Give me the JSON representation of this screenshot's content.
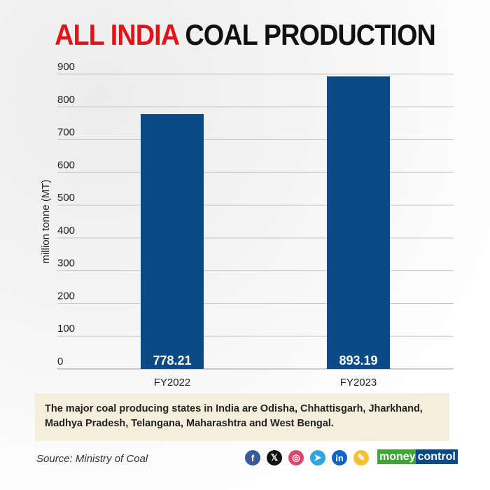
{
  "title": {
    "highlight": "ALL INDIA",
    "rest": "COAL PRODUCTION"
  },
  "chart_data": {
    "type": "bar",
    "title": "ALL INDIA COAL PRODUCTION",
    "categories": [
      "FY2022",
      "FY2023"
    ],
    "values": [
      778.21,
      893.19
    ],
    "value_labels": [
      "778.21",
      "893.19"
    ],
    "xlabel": "",
    "ylabel": "million tonne (MT)",
    "ylim": [
      0,
      900
    ],
    "yticks": [
      0,
      100,
      200,
      300,
      400,
      500,
      600,
      700,
      800,
      900
    ],
    "grid": true,
    "bar_color": "#0a4a87"
  },
  "note": "The major coal producing states in India are Odisha, Chhattisgarh, Jharkhand, Madhya Pradesh, Telangana, Maharashtra and West Bengal.",
  "source": "Source: Ministry of Coal",
  "social": [
    {
      "name": "facebook-icon",
      "glyph": "f",
      "color": "#3b5998"
    },
    {
      "name": "x-icon",
      "glyph": "𝕏",
      "color": "#111111"
    },
    {
      "name": "instagram-icon",
      "glyph": "◎",
      "color": "#d9486f"
    },
    {
      "name": "telegram-icon",
      "glyph": "➤",
      "color": "#2ca5e0"
    },
    {
      "name": "linkedin-icon",
      "glyph": "in",
      "color": "#0a66c2"
    },
    {
      "name": "koo-icon",
      "glyph": "✎",
      "color": "#f2c230"
    }
  ],
  "logo": {
    "part1": "money",
    "part2": "control"
  }
}
